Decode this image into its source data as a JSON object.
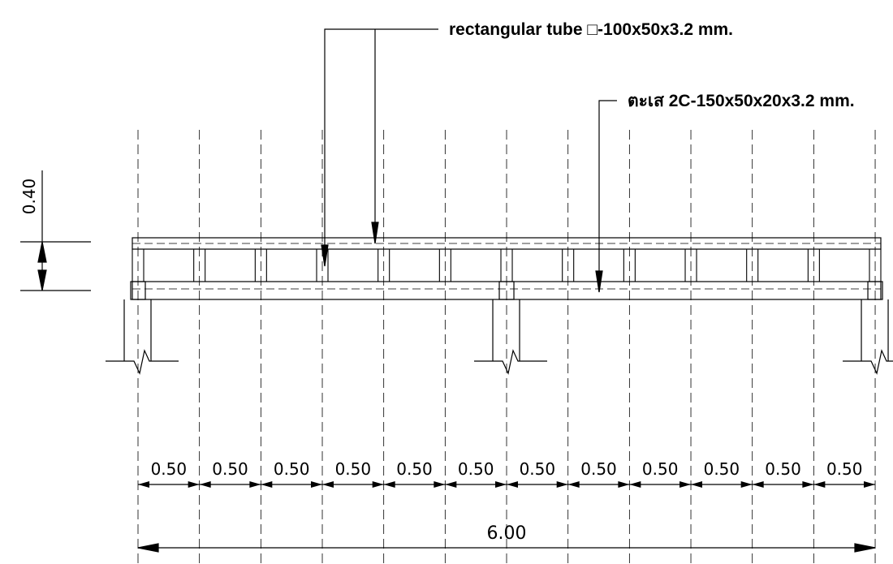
{
  "labels": {
    "top_chord": "rectangular tube □-100x50x3.2 mm.",
    "bottom_chord": "ตะเส 2C-150x50x20x3.2 mm.",
    "height_dim": "0.40",
    "total_dim": "6.00"
  },
  "spacing_dims": [
    "0.50",
    "0.50",
    "0.50",
    "0.50",
    "0.50",
    "0.50",
    "0.50",
    "0.50",
    "0.50",
    "0.50",
    "0.50",
    "0.50"
  ],
  "colors": {
    "line": "#000000",
    "background": "#ffffff"
  }
}
